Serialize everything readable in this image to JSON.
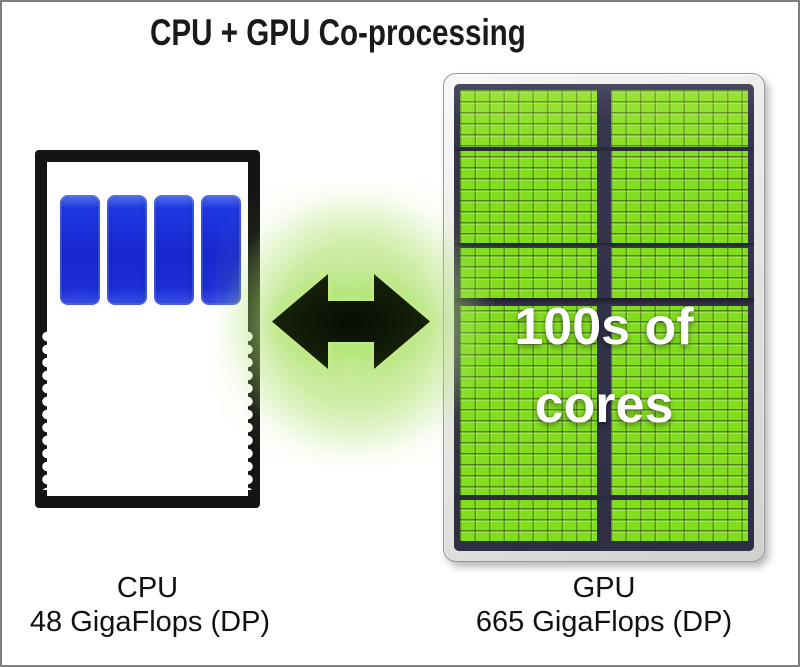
{
  "title": "CPU + GPU Co-processing",
  "cpu": {
    "label": "CPU",
    "spec": "48 GigaFlops (DP)",
    "cores": 4,
    "core_color": "#1d2fd6",
    "body_color": "#141414"
  },
  "gpu": {
    "label": "GPU",
    "spec": "665 GigaFlops (DP)",
    "overlay_line1": "100s of",
    "overlay_line2": "cores",
    "core_color": "#82dd1d",
    "die_color": "#35354e"
  },
  "arrow": {
    "direction": "bidirectional",
    "fill_color": "#0c1106",
    "glow_color": "#b0e270"
  }
}
